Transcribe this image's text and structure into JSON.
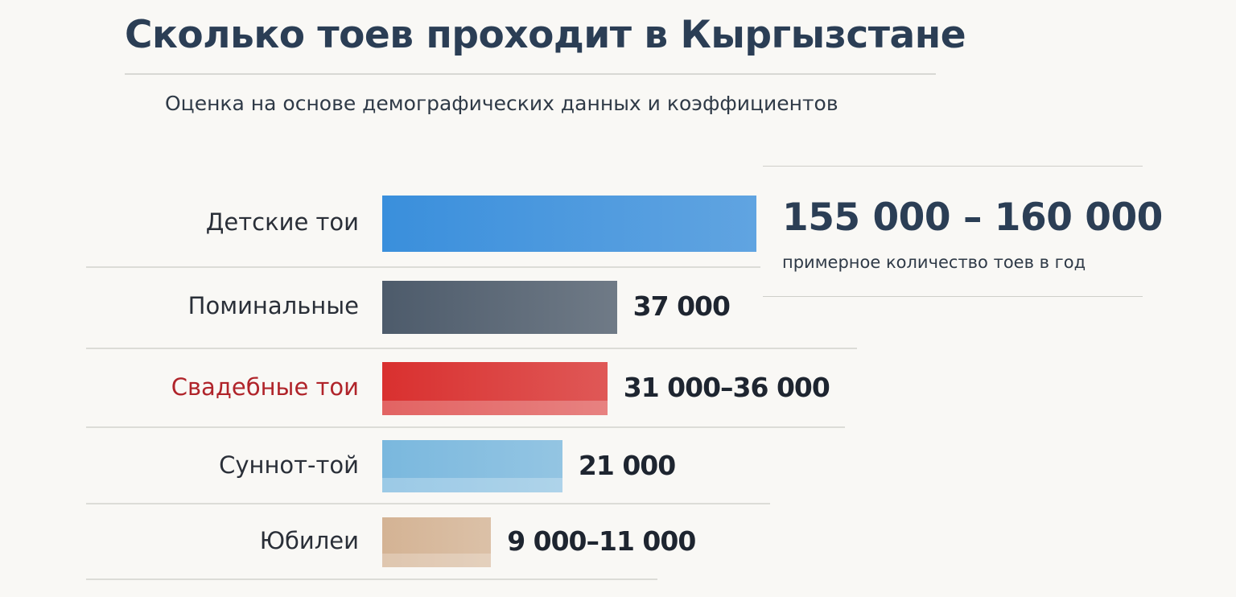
{
  "title": "Сколько тоев проходит в Кыргызстане",
  "subtitle": "Оценка на основе демографических данных и коэффициентов",
  "callout": {
    "value": "155 000 – 160 000",
    "caption": "примерное количество тоев в год"
  },
  "chart_data": {
    "type": "bar",
    "orientation": "horizontal",
    "scale": "log (illustrative)",
    "categories": [
      "Детские тои",
      "Поминальные",
      "Свадебные тои",
      "Суннот-той",
      "Юбилеи"
    ],
    "value_labels": [
      "155 000 – 160 000",
      "37 000",
      "31 000–36 000",
      "21 000",
      "9 000–11 000"
    ],
    "values": [
      157500,
      37000,
      33500,
      21000,
      10000
    ],
    "ranges": [
      [
        155000,
        160000
      ],
      [
        37000,
        37000
      ],
      [
        31000,
        36000
      ],
      [
        21000,
        21000
      ],
      [
        9000,
        11000
      ]
    ],
    "colors": [
      "#3a8fdc",
      "#4d5b6b",
      "#d9302f",
      "#7ab8de",
      "#d4b394"
    ],
    "label_colors": [
      "#2a2f38",
      "#2a2f38",
      "#b0242a",
      "#2a2f38",
      "#2a2f38"
    ]
  }
}
